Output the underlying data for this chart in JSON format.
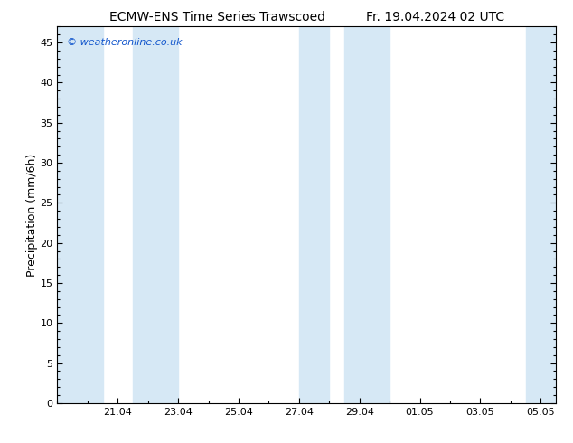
{
  "title_left": "ECMW-ENS Time Series Trawscoed",
  "title_right": "Fr. 19.04.2024 02 UTC",
  "ylabel": "Precipitation (mm/6h)",
  "watermark": "© weatheronline.co.uk",
  "bg_color": "#ffffff",
  "plot_bg_color": "#ffffff",
  "band_color": "#d6e8f5",
  "ylim": [
    0,
    47
  ],
  "yticks": [
    0,
    5,
    10,
    15,
    20,
    25,
    30,
    35,
    40,
    45
  ],
  "x_min": 0.0,
  "x_max": 16.5,
  "xtick_labels": [
    "21.04",
    "23.04",
    "25.04",
    "27.04",
    "29.04",
    "01.05",
    "03.05",
    "05.05"
  ],
  "xtick_positions": [
    2.0,
    4.0,
    6.0,
    8.0,
    10.0,
    12.0,
    14.0,
    16.0
  ],
  "bands": [
    [
      0.0,
      1.5
    ],
    [
      2.5,
      4.0
    ],
    [
      8.0,
      9.0
    ],
    [
      9.5,
      11.0
    ],
    [
      15.5,
      16.5
    ]
  ],
  "title_fontsize": 10,
  "ylabel_fontsize": 9,
  "tick_fontsize": 8,
  "watermark_fontsize": 8
}
